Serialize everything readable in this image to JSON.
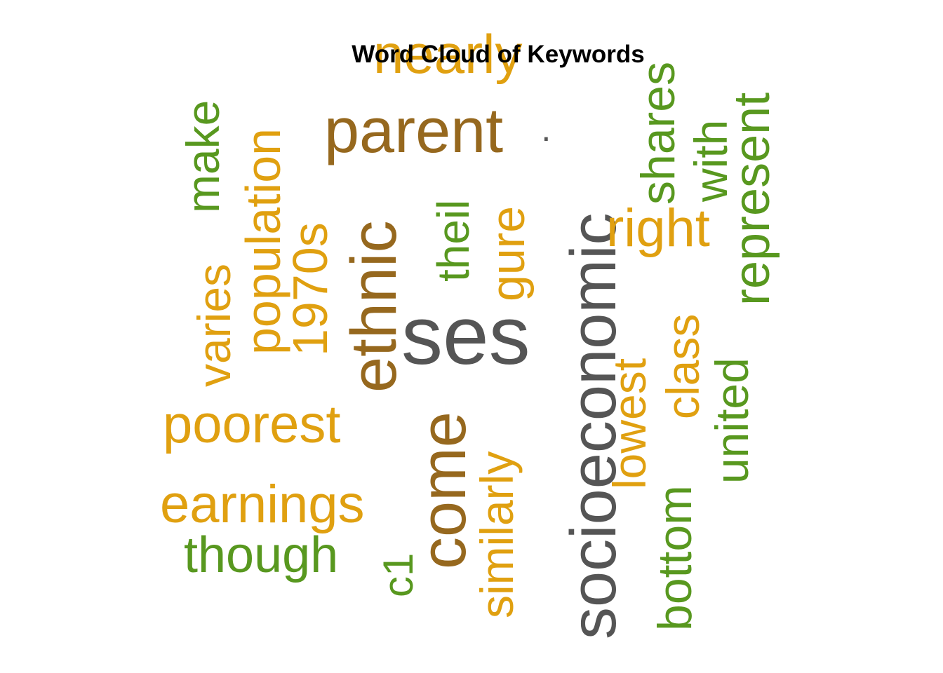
{
  "chart_data": {
    "type": "wordcloud",
    "title": "Word Cloud of Keywords",
    "palette": {
      "gray": "#555555",
      "brown": "#96681e",
      "gold": "#e0a010",
      "green": "#58981f"
    },
    "words": [
      {
        "text": "socioeconomic",
        "color": "gray"
      },
      {
        "text": "ses",
        "color": "gray"
      },
      {
        "text": "parent",
        "color": "brown"
      },
      {
        "text": "ethnic",
        "color": "brown"
      },
      {
        "text": "come",
        "color": "brown"
      },
      {
        "text": "nearly",
        "color": "gold"
      },
      {
        "text": "poorest",
        "color": "gold"
      },
      {
        "text": "earnings",
        "color": "gold"
      },
      {
        "text": "population",
        "color": "gold"
      },
      {
        "text": "1970s",
        "color": "gold"
      },
      {
        "text": "similarly",
        "color": "gold"
      },
      {
        "text": "gure",
        "color": "gold"
      },
      {
        "text": "right",
        "color": "gold"
      },
      {
        "text": "lowest",
        "color": "gold"
      },
      {
        "text": "class",
        "color": "gold"
      },
      {
        "text": "varies",
        "color": "gold"
      },
      {
        "text": "though",
        "color": "green"
      },
      {
        "text": "make",
        "color": "green"
      },
      {
        "text": "theil",
        "color": "green"
      },
      {
        "text": "c1",
        "color": "green"
      },
      {
        "text": "shares",
        "color": "green"
      },
      {
        "text": "with",
        "color": "green"
      },
      {
        "text": "represent",
        "color": "green"
      },
      {
        "text": "united",
        "color": "green"
      },
      {
        "text": "bottom",
        "color": "green"
      },
      {
        "text": "·",
        "color": "gray"
      }
    ]
  }
}
